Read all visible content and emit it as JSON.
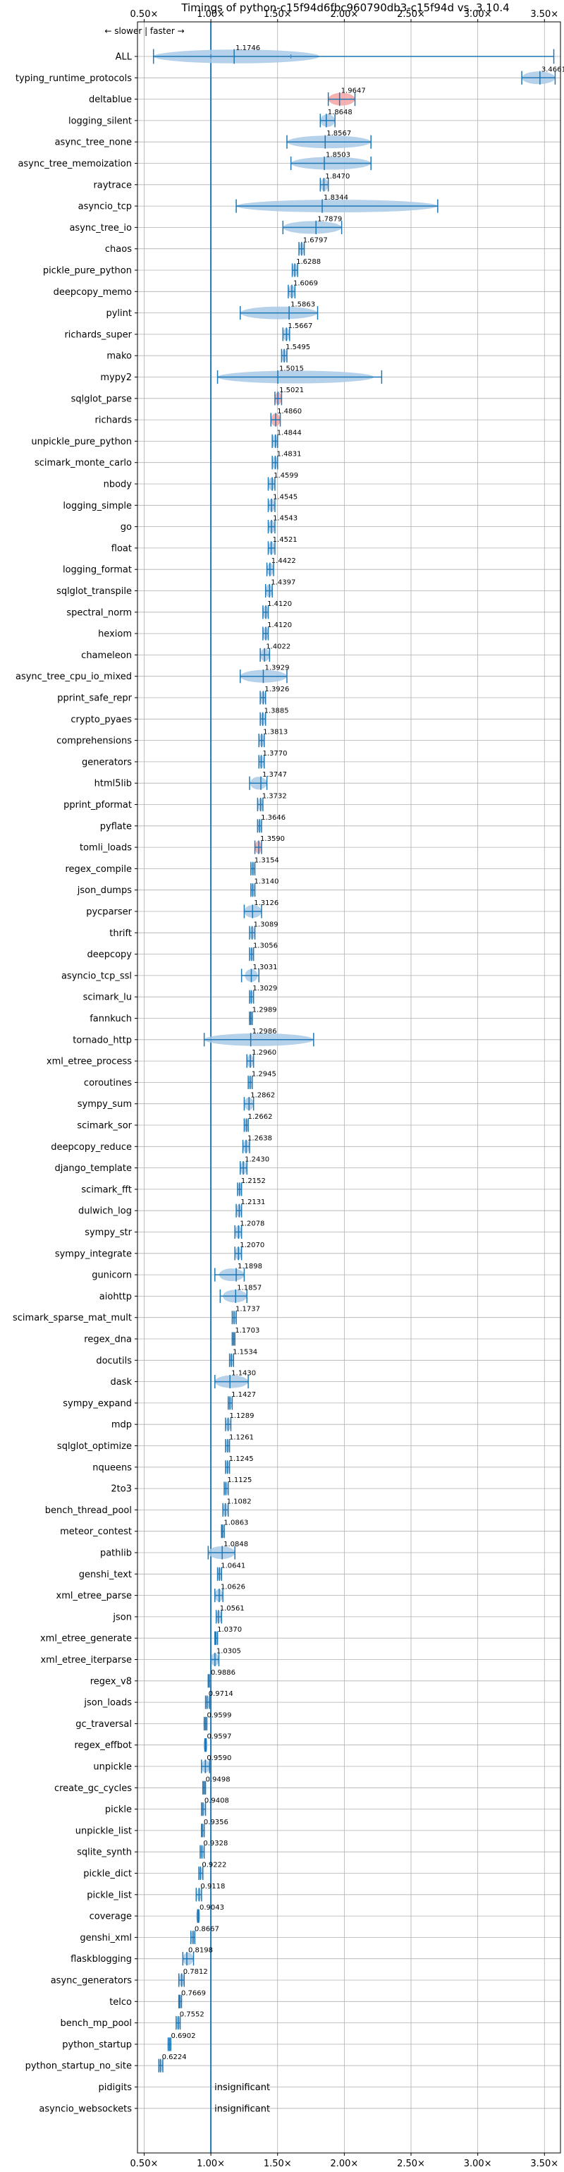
{
  "chart_data": {
    "type": "violin",
    "title": "Timings of python-c15f94d6fbc960790db3-c15f94d vs. 3.10.4",
    "legend_note": "← slower | faster →",
    "xlim": [
      0.45,
      3.62
    ],
    "x_ticks": [
      0.5,
      1.0,
      1.5,
      2.0,
      2.5,
      3.0,
      3.5
    ],
    "x_tick_labels": [
      "0.50×",
      "1.00×",
      "1.50×",
      "2.00×",
      "2.50×",
      "3.00×",
      "3.50×"
    ],
    "reference_line": 1.0,
    "grid": true,
    "colors": {
      "violin": "#a9c9e6",
      "line": "#1f77b4",
      "slower": "#f4a3a3"
    },
    "insignificant_text": "insignificant",
    "benchmarks": [
      {
        "name": "ALL",
        "value": 1.1746,
        "label": "1.1746",
        "min": 0.57,
        "max": 3.57,
        "spread": 0.4,
        "q1": 1.0,
        "q3": 1.6
      },
      {
        "name": "typing_runtime_protocols",
        "value": 3.4661,
        "label": "3.4661",
        "min": 3.33,
        "max": 3.58,
        "spread": 0.12
      },
      {
        "name": "deltablue",
        "value": 1.9647,
        "label": "1.9647",
        "min": 1.88,
        "max": 2.08,
        "spread": 0.09,
        "slower": true
      },
      {
        "name": "logging_silent",
        "value": 1.8648,
        "label": "1.8648",
        "min": 1.82,
        "max": 1.93,
        "spread": 0.04
      },
      {
        "name": "async_tree_none",
        "value": 1.8567,
        "label": "1.8567",
        "min": 1.57,
        "max": 2.2,
        "spread": 0.3
      },
      {
        "name": "async_tree_memoization",
        "value": 1.8503,
        "label": "1.8503",
        "min": 1.6,
        "max": 2.2,
        "spread": 0.3
      },
      {
        "name": "raytrace",
        "value": 1.847,
        "label": "1.8470",
        "min": 1.82,
        "max": 1.88,
        "spread": 0.02
      },
      {
        "name": "asyncio_tcp",
        "value": 1.8344,
        "label": "1.8344",
        "min": 1.19,
        "max": 2.7,
        "spread": 0.7
      },
      {
        "name": "async_tree_io",
        "value": 1.7879,
        "label": "1.7879",
        "min": 1.54,
        "max": 1.98,
        "spread": 0.2
      },
      {
        "name": "chaos",
        "value": 1.6797,
        "label": "1.6797",
        "min": 1.66,
        "max": 1.7,
        "spread": 0.02
      },
      {
        "name": "pickle_pure_python",
        "value": 1.6288,
        "label": "1.6288",
        "min": 1.61,
        "max": 1.65,
        "spread": 0.02
      },
      {
        "name": "deepcopy_memo",
        "value": 1.6069,
        "label": "1.6069",
        "min": 1.58,
        "max": 1.63,
        "spread": 0.02
      },
      {
        "name": "pylint",
        "value": 1.5863,
        "label": "1.5863",
        "min": 1.22,
        "max": 1.8,
        "spread": 0.25
      },
      {
        "name": "richards_super",
        "value": 1.5667,
        "label": "1.5667",
        "min": 1.54,
        "max": 1.59,
        "spread": 0.02
      },
      {
        "name": "mako",
        "value": 1.5495,
        "label": "1.5495",
        "min": 1.53,
        "max": 1.57,
        "spread": 0.02
      },
      {
        "name": "mypy2",
        "value": 1.5015,
        "label": "1.5015",
        "min": 1.05,
        "max": 2.28,
        "spread": 0.45
      },
      {
        "name": "sqlglot_parse",
        "value": 1.5021,
        "label": "1.5021",
        "min": 1.48,
        "max": 1.53,
        "spread": 0.03,
        "slower": true
      },
      {
        "name": "richards",
        "value": 1.486,
        "label": "1.4860",
        "min": 1.45,
        "max": 1.52,
        "spread": 0.03,
        "slower": true
      },
      {
        "name": "unpickle_pure_python",
        "value": 1.4844,
        "label": "1.4844",
        "min": 1.46,
        "max": 1.5,
        "spread": 0.02
      },
      {
        "name": "scimark_monte_carlo",
        "value": 1.4831,
        "label": "1.4831",
        "min": 1.46,
        "max": 1.5,
        "spread": 0.02
      },
      {
        "name": "nbody",
        "value": 1.4599,
        "label": "1.4599",
        "min": 1.43,
        "max": 1.48,
        "spread": 0.02
      },
      {
        "name": "logging_simple",
        "value": 1.4545,
        "label": "1.4545",
        "min": 1.43,
        "max": 1.48,
        "spread": 0.02
      },
      {
        "name": "go",
        "value": 1.4543,
        "label": "1.4543",
        "min": 1.43,
        "max": 1.48,
        "spread": 0.02
      },
      {
        "name": "float",
        "value": 1.4521,
        "label": "1.4521",
        "min": 1.43,
        "max": 1.48,
        "spread": 0.02
      },
      {
        "name": "logging_format",
        "value": 1.4422,
        "label": "1.4422",
        "min": 1.42,
        "max": 1.47,
        "spread": 0.02
      },
      {
        "name": "sqlglot_transpile",
        "value": 1.4397,
        "label": "1.4397",
        "min": 1.41,
        "max": 1.46,
        "spread": 0.03
      },
      {
        "name": "spectral_norm",
        "value": 1.412,
        "label": "1.4120",
        "min": 1.39,
        "max": 1.43,
        "spread": 0.02
      },
      {
        "name": "hexiom",
        "value": 1.412,
        "label": "1.4120",
        "min": 1.39,
        "max": 1.43,
        "spread": 0.02
      },
      {
        "name": "chameleon",
        "value": 1.4022,
        "label": "1.4022",
        "min": 1.37,
        "max": 1.44,
        "spread": 0.03
      },
      {
        "name": "async_tree_cpu_io_mixed",
        "value": 1.3929,
        "label": "1.3929",
        "min": 1.22,
        "max": 1.57,
        "spread": 0.15
      },
      {
        "name": "pprint_safe_repr",
        "value": 1.3926,
        "label": "1.3926",
        "min": 1.37,
        "max": 1.41,
        "spread": 0.02
      },
      {
        "name": "crypto_pyaes",
        "value": 1.3885,
        "label": "1.3885",
        "min": 1.37,
        "max": 1.41,
        "spread": 0.02
      },
      {
        "name": "comprehensions",
        "value": 1.3813,
        "label": "1.3813",
        "min": 1.36,
        "max": 1.4,
        "spread": 0.02
      },
      {
        "name": "generators",
        "value": 1.377,
        "label": "1.3770",
        "min": 1.36,
        "max": 1.4,
        "spread": 0.02
      },
      {
        "name": "html5lib",
        "value": 1.3747,
        "label": "1.3747",
        "min": 1.29,
        "max": 1.42,
        "spread": 0.05
      },
      {
        "name": "pprint_pformat",
        "value": 1.3732,
        "label": "1.3732",
        "min": 1.35,
        "max": 1.39,
        "spread": 0.02
      },
      {
        "name": "pyflate",
        "value": 1.3646,
        "label": "1.3646",
        "min": 1.35,
        "max": 1.38,
        "spread": 0.02
      },
      {
        "name": "tomli_loads",
        "value": 1.359,
        "label": "1.3590",
        "min": 1.33,
        "max": 1.38,
        "spread": 0.03,
        "slower": true
      },
      {
        "name": "regex_compile",
        "value": 1.3154,
        "label": "1.3154",
        "min": 1.3,
        "max": 1.33,
        "spread": 0.02
      },
      {
        "name": "json_dumps",
        "value": 1.314,
        "label": "1.3140",
        "min": 1.3,
        "max": 1.33,
        "spread": 0.02
      },
      {
        "name": "pycparser",
        "value": 1.3126,
        "label": "1.3126",
        "min": 1.25,
        "max": 1.38,
        "spread": 0.06
      },
      {
        "name": "thrift",
        "value": 1.3089,
        "label": "1.3089",
        "min": 1.29,
        "max": 1.33,
        "spread": 0.02
      },
      {
        "name": "deepcopy",
        "value": 1.3056,
        "label": "1.3056",
        "min": 1.29,
        "max": 1.32,
        "spread": 0.02
      },
      {
        "name": "asyncio_tcp_ssl",
        "value": 1.3031,
        "label": "1.3031",
        "min": 1.23,
        "max": 1.36,
        "spread": 0.03
      },
      {
        "name": "scimark_lu",
        "value": 1.3029,
        "label": "1.3029",
        "min": 1.29,
        "max": 1.32,
        "spread": 0.02
      },
      {
        "name": "fannkuch",
        "value": 1.2989,
        "label": "1.2989",
        "min": 1.29,
        "max": 1.31,
        "spread": 0.01
      },
      {
        "name": "tornado_http",
        "value": 1.2986,
        "label": "1.2986",
        "min": 0.95,
        "max": 1.77,
        "spread": 0.38
      },
      {
        "name": "xml_etree_process",
        "value": 1.296,
        "label": "1.2960",
        "min": 1.27,
        "max": 1.32,
        "spread": 0.02
      },
      {
        "name": "coroutines",
        "value": 1.2945,
        "label": "1.2945",
        "min": 1.28,
        "max": 1.31,
        "spread": 0.02
      },
      {
        "name": "sympy_sum",
        "value": 1.2862,
        "label": "1.2862",
        "min": 1.25,
        "max": 1.32,
        "spread": 0.03
      },
      {
        "name": "scimark_sor",
        "value": 1.2662,
        "label": "1.2662",
        "min": 1.25,
        "max": 1.28,
        "spread": 0.02
      },
      {
        "name": "deepcopy_reduce",
        "value": 1.2638,
        "label": "1.2638",
        "min": 1.24,
        "max": 1.29,
        "spread": 0.02
      },
      {
        "name": "django_template",
        "value": 1.243,
        "label": "1.2430",
        "min": 1.22,
        "max": 1.27,
        "spread": 0.02
      },
      {
        "name": "scimark_fft",
        "value": 1.2152,
        "label": "1.2152",
        "min": 1.2,
        "max": 1.23,
        "spread": 0.02
      },
      {
        "name": "dulwich_log",
        "value": 1.2131,
        "label": "1.2131",
        "min": 1.19,
        "max": 1.23,
        "spread": 0.02
      },
      {
        "name": "sympy_str",
        "value": 1.2078,
        "label": "1.2078",
        "min": 1.18,
        "max": 1.23,
        "spread": 0.02
      },
      {
        "name": "sympy_integrate",
        "value": 1.207,
        "label": "1.2070",
        "min": 1.18,
        "max": 1.23,
        "spread": 0.02
      },
      {
        "name": "gunicorn",
        "value": 1.1898,
        "label": "1.1898",
        "min": 1.03,
        "max": 1.25,
        "spread": 0.08
      },
      {
        "name": "aiohttp",
        "value": 1.1857,
        "label": "1.1857",
        "min": 1.07,
        "max": 1.27,
        "spread": 0.06
      },
      {
        "name": "scimark_sparse_mat_mult",
        "value": 1.1737,
        "label": "1.1737",
        "min": 1.16,
        "max": 1.19,
        "spread": 0.01
      },
      {
        "name": "regex_dna",
        "value": 1.1703,
        "label": "1.1703",
        "min": 1.16,
        "max": 1.18,
        "spread": 0.01
      },
      {
        "name": "docutils",
        "value": 1.1534,
        "label": "1.1534",
        "min": 1.14,
        "max": 1.17,
        "spread": 0.02
      },
      {
        "name": "dask",
        "value": 1.143,
        "label": "1.1430",
        "min": 1.03,
        "max": 1.28,
        "spread": 0.1
      },
      {
        "name": "sympy_expand",
        "value": 1.1427,
        "label": "1.1427",
        "min": 1.13,
        "max": 1.16,
        "spread": 0.01
      },
      {
        "name": "mdp",
        "value": 1.1289,
        "label": "1.1289",
        "min": 1.11,
        "max": 1.15,
        "spread": 0.02
      },
      {
        "name": "sqlglot_optimize",
        "value": 1.1261,
        "label": "1.1261",
        "min": 1.11,
        "max": 1.14,
        "spread": 0.02
      },
      {
        "name": "nqueens",
        "value": 1.1245,
        "label": "1.1245",
        "min": 1.11,
        "max": 1.14,
        "spread": 0.02
      },
      {
        "name": "2to3",
        "value": 1.1125,
        "label": "1.1125",
        "min": 1.1,
        "max": 1.13,
        "spread": 0.01
      },
      {
        "name": "bench_thread_pool",
        "value": 1.1082,
        "label": "1.1082",
        "min": 1.09,
        "max": 1.13,
        "spread": 0.02
      },
      {
        "name": "meteor_contest",
        "value": 1.0863,
        "label": "1.0863",
        "min": 1.08,
        "max": 1.1,
        "spread": 0.01
      },
      {
        "name": "pathlib",
        "value": 1.0848,
        "label": "1.0848",
        "min": 0.98,
        "max": 1.18,
        "spread": 0.08
      },
      {
        "name": "genshi_text",
        "value": 1.0641,
        "label": "1.0641",
        "min": 1.05,
        "max": 1.08,
        "spread": 0.02
      },
      {
        "name": "xml_etree_parse",
        "value": 1.0626,
        "label": "1.0626",
        "min": 1.03,
        "max": 1.09,
        "spread": 0.03
      },
      {
        "name": "json",
        "value": 1.0561,
        "label": "1.0561",
        "min": 1.04,
        "max": 1.08,
        "spread": 0.02
      },
      {
        "name": "xml_etree_generate",
        "value": 1.037,
        "label": "1.0370",
        "min": 1.03,
        "max": 1.05,
        "spread": 0.01
      },
      {
        "name": "xml_etree_iterparse",
        "value": 1.0305,
        "label": "1.0305",
        "min": 1.0,
        "max": 1.06,
        "spread": 0.03
      },
      {
        "name": "regex_v8",
        "value": 0.9886,
        "label": "0.9886",
        "min": 0.98,
        "max": 1.0,
        "spread": 0.01
      },
      {
        "name": "json_loads",
        "value": 0.9714,
        "label": "0.9714",
        "min": 0.96,
        "max": 0.99,
        "spread": 0.01
      },
      {
        "name": "gc_traversal",
        "value": 0.9599,
        "label": "0.9599",
        "min": 0.95,
        "max": 0.97,
        "spread": 0.01
      },
      {
        "name": "regex_effbot",
        "value": 0.9597,
        "label": "0.9597",
        "min": 0.955,
        "max": 0.965,
        "spread": 0.005
      },
      {
        "name": "unpickle",
        "value": 0.959,
        "label": "0.9590",
        "min": 0.93,
        "max": 0.99,
        "spread": 0.03
      },
      {
        "name": "create_gc_cycles",
        "value": 0.9498,
        "label": "0.9498",
        "min": 0.94,
        "max": 0.96,
        "spread": 0.01
      },
      {
        "name": "pickle",
        "value": 0.9408,
        "label": "0.9408",
        "min": 0.93,
        "max": 0.96,
        "spread": 0.01
      },
      {
        "name": "unpickle_list",
        "value": 0.9356,
        "label": "0.9356",
        "min": 0.93,
        "max": 0.95,
        "spread": 0.01
      },
      {
        "name": "sqlite_synth",
        "value": 0.9328,
        "label": "0.9328",
        "min": 0.92,
        "max": 0.95,
        "spread": 0.01
      },
      {
        "name": "pickle_dict",
        "value": 0.9222,
        "label": "0.9222",
        "min": 0.91,
        "max": 0.94,
        "spread": 0.01
      },
      {
        "name": "pickle_list",
        "value": 0.9118,
        "label": "0.9118",
        "min": 0.89,
        "max": 0.93,
        "spread": 0.01
      },
      {
        "name": "coverage",
        "value": 0.9043,
        "label": "0.9043",
        "min": 0.9,
        "max": 0.91,
        "spread": 0.005
      },
      {
        "name": "genshi_xml",
        "value": 0.8667,
        "label": "0.8667",
        "min": 0.85,
        "max": 0.88,
        "spread": 0.01
      },
      {
        "name": "flaskblogging",
        "value": 0.8198,
        "label": "0.8198",
        "min": 0.79,
        "max": 0.87,
        "spread": 0.03
      },
      {
        "name": "async_generators",
        "value": 0.7812,
        "label": "0.7812",
        "min": 0.76,
        "max": 0.8,
        "spread": 0.02
      },
      {
        "name": "telco",
        "value": 0.7669,
        "label": "0.7669",
        "min": 0.76,
        "max": 0.78,
        "spread": 0.01
      },
      {
        "name": "bench_mp_pool",
        "value": 0.7552,
        "label": "0.7552",
        "min": 0.74,
        "max": 0.77,
        "spread": 0.01
      },
      {
        "name": "python_startup",
        "value": 0.6902,
        "label": "0.6902",
        "min": 0.68,
        "max": 0.7,
        "spread": 0.01
      },
      {
        "name": "python_startup_no_site",
        "value": 0.6224,
        "label": "0.6224",
        "min": 0.61,
        "max": 0.64,
        "spread": 0.01
      },
      {
        "name": "pidigits",
        "insignificant": true
      },
      {
        "name": "asyncio_websockets",
        "insignificant": true
      }
    ]
  }
}
